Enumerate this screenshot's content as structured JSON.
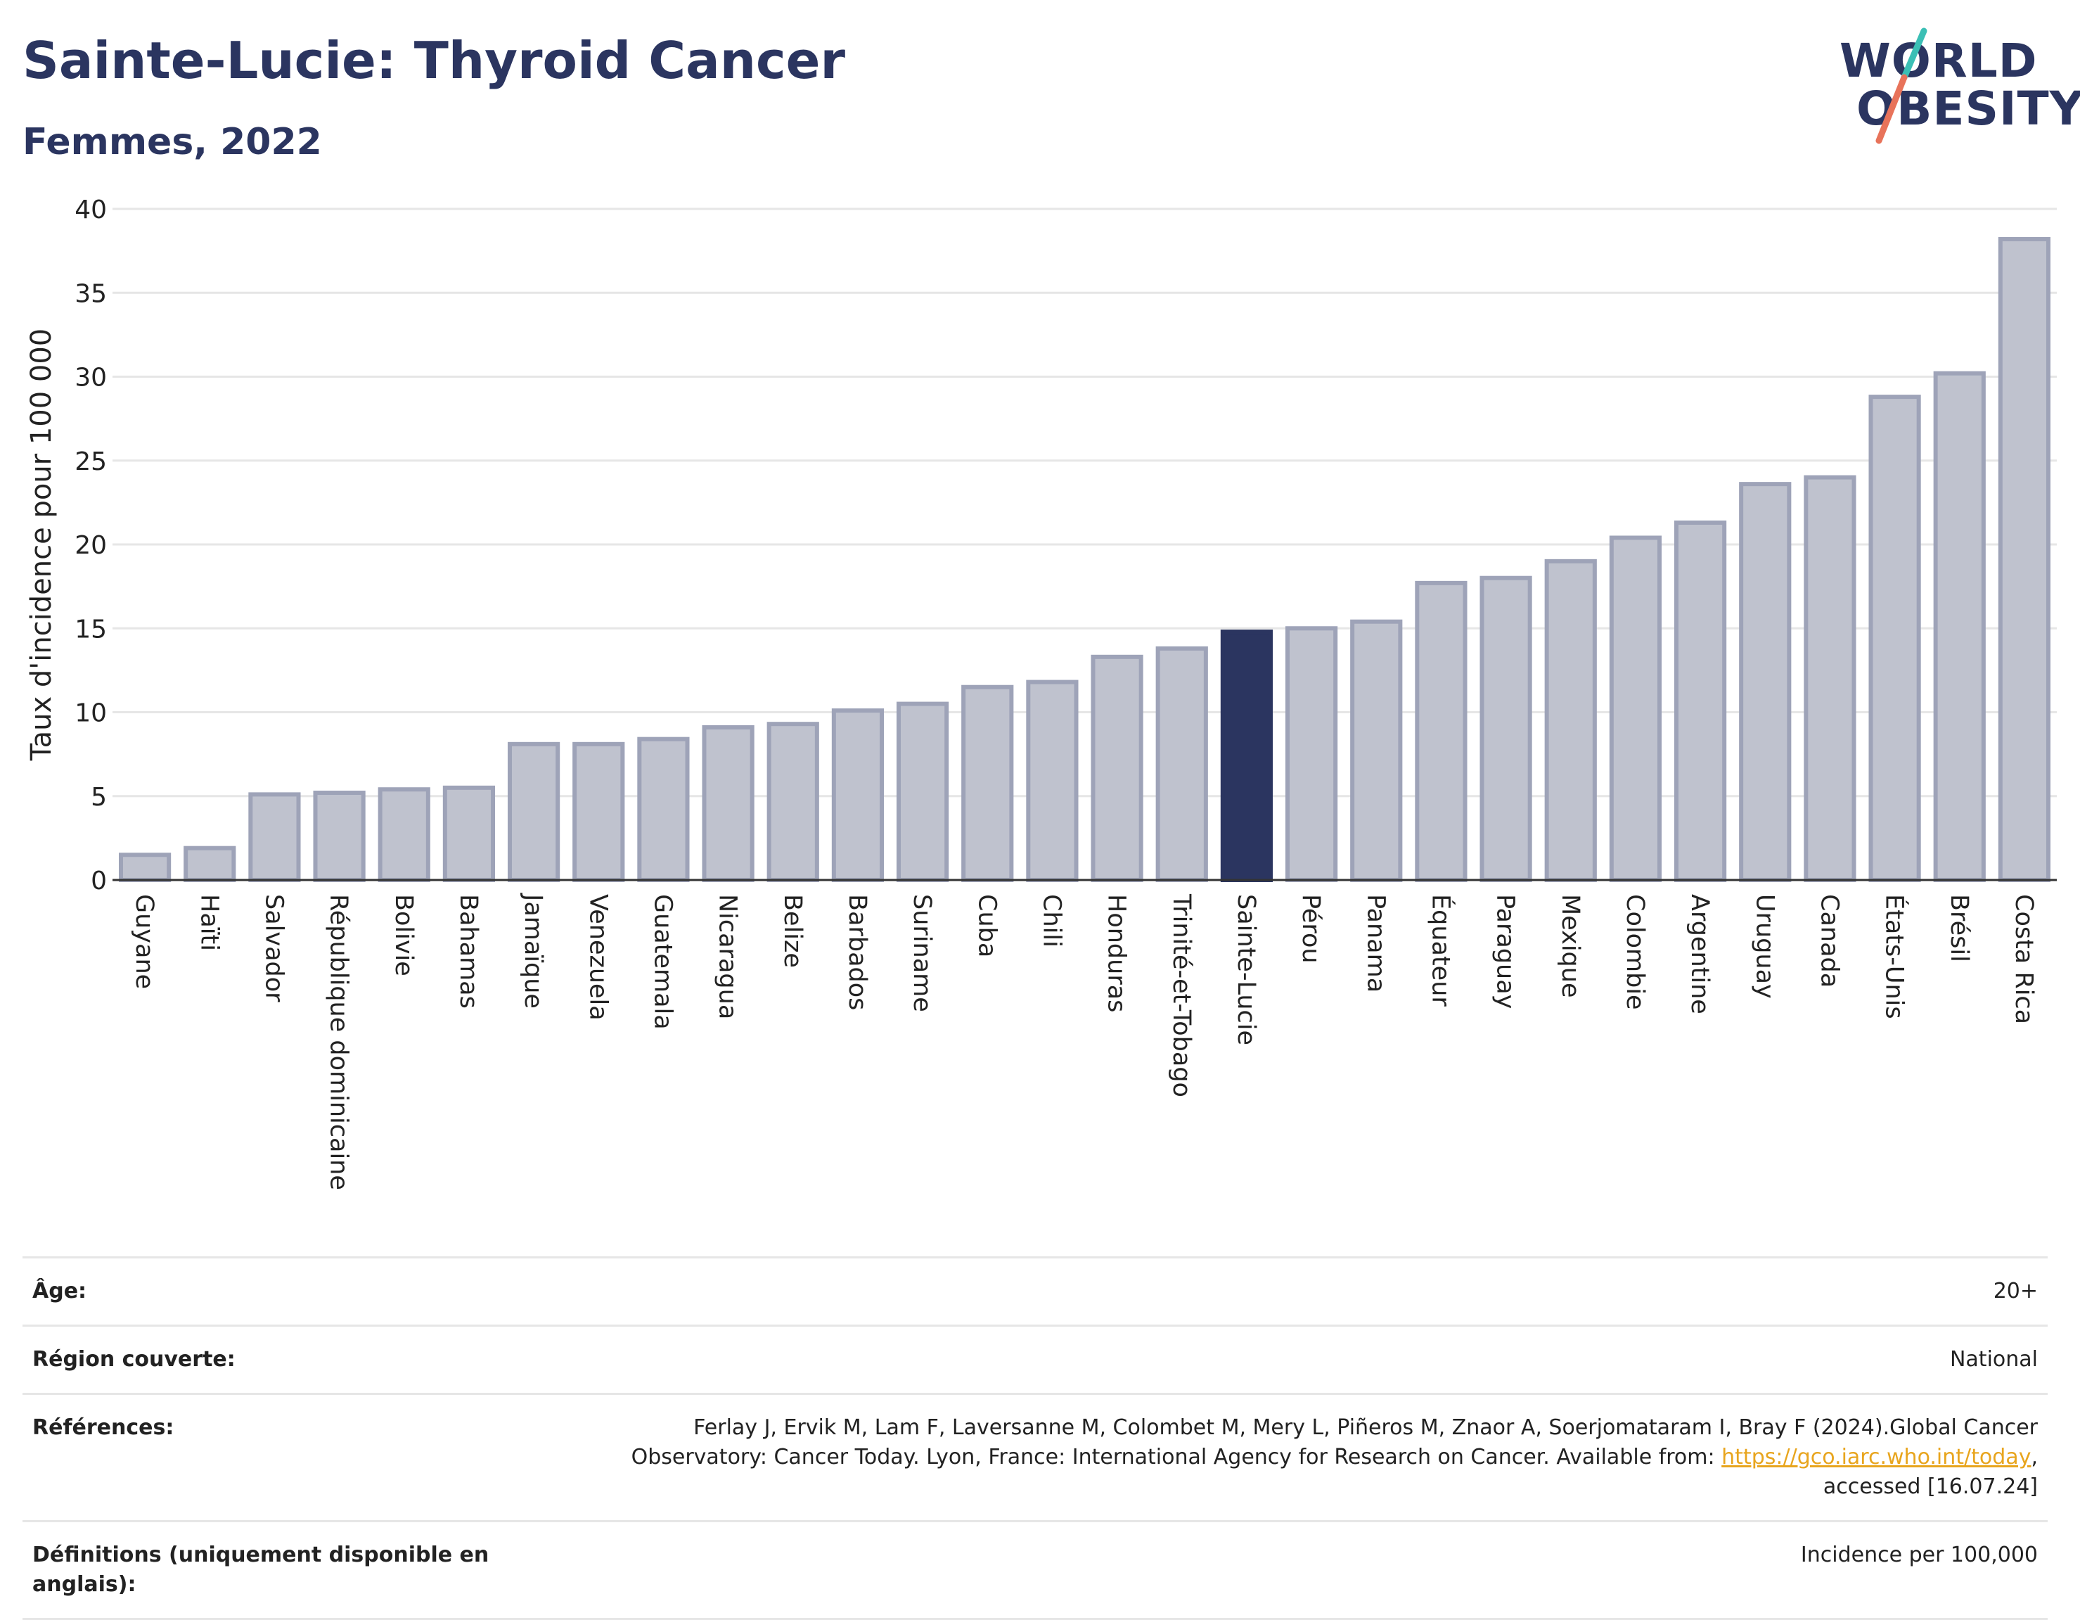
{
  "header": {
    "title": "Sainte-Lucie: Thyroid Cancer",
    "subtitle": "Femmes, 2022",
    "logo_line1": "WORLD",
    "logo_line2": "OBESITY"
  },
  "colors": {
    "title": "#2b3560",
    "bar_default": "#bfc2ce",
    "bar_border": "#9ea3b8",
    "bar_highlight": "#2b3560",
    "link": "#e8a51e",
    "logo_slash_top": "#3bbfb5",
    "logo_slash_bottom": "#e8735a"
  },
  "chart_data": {
    "type": "bar",
    "title": "Sainte-Lucie: Thyroid Cancer",
    "subtitle": "Femmes, 2022",
    "xlabel": "",
    "ylabel": "Taux d'incidence pour 100 000",
    "ylim": [
      0,
      40
    ],
    "yticks": [
      0,
      5,
      10,
      15,
      20,
      25,
      30,
      35,
      40
    ],
    "grid": true,
    "highlight": "Sainte-Lucie",
    "categories": [
      "Guyane",
      "Haïti",
      "Salvador",
      "République dominicaine",
      "Bolivie",
      "Bahamas",
      "Jamaïque",
      "Venezuela",
      "Guatemala",
      "Nicaragua",
      "Belize",
      "Barbados",
      "Suriname",
      "Cuba",
      "Chili",
      "Honduras",
      "Trinité-et-Tobago",
      "Sainte-Lucie",
      "Pérou",
      "Panama",
      "Équateur",
      "Paraguay",
      "Mexique",
      "Colombie",
      "Argentine",
      "Uruguay",
      "Canada",
      "États-Unis",
      "Brésil",
      "Costa Rica"
    ],
    "values": [
      1.5,
      1.9,
      5.1,
      5.2,
      5.4,
      5.5,
      8.1,
      8.1,
      8.4,
      9.1,
      9.3,
      10.1,
      10.5,
      11.5,
      11.8,
      13.3,
      13.8,
      14.8,
      15.0,
      15.4,
      17.7,
      18.0,
      19.0,
      20.4,
      21.3,
      23.6,
      24.0,
      28.8,
      30.2,
      38.2
    ]
  },
  "meta": {
    "rows": [
      {
        "label": "Âge:",
        "value": "20+"
      },
      {
        "label": "Région couverte:",
        "value": "National"
      },
      {
        "label": "Références:",
        "value_pre": "Ferlay J, Ervik M, Lam F, Laversanne M, Colombet M, Mery L, Piñeros M, Znaor A, Soerjomataram I, Bray F (2024).Global Cancer Observatory: Cancer Today. Lyon, France: International Agency for Research on Cancer. Available from: ",
        "link": "https://gco.iarc.who.int/today",
        "value_post": ", accessed [16.07.24]"
      },
      {
        "label": "Définitions (uniquement disponible en anglais):",
        "value": "Incidence per 100,000"
      }
    ]
  }
}
